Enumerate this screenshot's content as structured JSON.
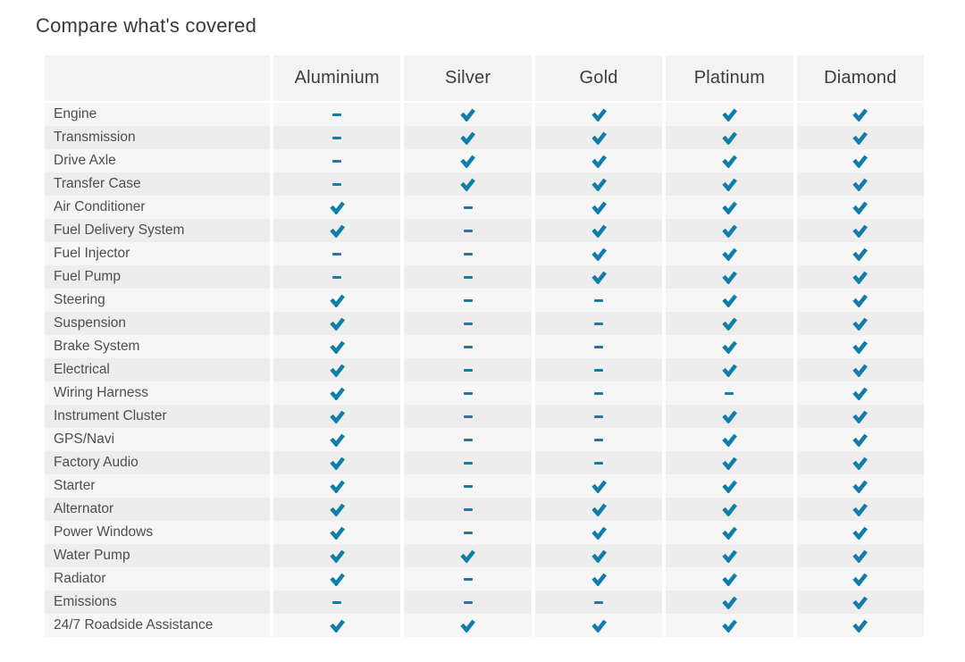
{
  "title": "Compare what's covered",
  "colors": {
    "accent": "#127ea7",
    "header_bg": "#f3f3f3",
    "row_odd_bg": "#f6f6f6",
    "row_even_bg": "#ededed"
  },
  "table": {
    "columns": [
      "Aluminium",
      "Silver",
      "Gold",
      "Platinum",
      "Diamond"
    ],
    "mark_names": {
      "check": "check-icon",
      "dash": "dash-icon"
    },
    "rows": [
      {
        "label": "Engine",
        "values": [
          "dash",
          "check",
          "check",
          "check",
          "check"
        ]
      },
      {
        "label": "Transmission",
        "values": [
          "dash",
          "check",
          "check",
          "check",
          "check"
        ]
      },
      {
        "label": "Drive Axle",
        "values": [
          "dash",
          "check",
          "check",
          "check",
          "check"
        ]
      },
      {
        "label": "Transfer Case",
        "values": [
          "dash",
          "check",
          "check",
          "check",
          "check"
        ]
      },
      {
        "label": "Air Conditioner",
        "values": [
          "check",
          "dash",
          "check",
          "check",
          "check"
        ]
      },
      {
        "label": "Fuel Delivery System",
        "values": [
          "check",
          "dash",
          "check",
          "check",
          "check"
        ]
      },
      {
        "label": "Fuel Injector",
        "values": [
          "dash",
          "dash",
          "check",
          "check",
          "check"
        ]
      },
      {
        "label": "Fuel Pump",
        "values": [
          "dash",
          "dash",
          "check",
          "check",
          "check"
        ]
      },
      {
        "label": "Steering",
        "values": [
          "check",
          "dash",
          "dash",
          "check",
          "check"
        ]
      },
      {
        "label": "Suspension",
        "values": [
          "check",
          "dash",
          "dash",
          "check",
          "check"
        ]
      },
      {
        "label": "Brake System",
        "values": [
          "check",
          "dash",
          "dash",
          "check",
          "check"
        ]
      },
      {
        "label": "Electrical",
        "values": [
          "check",
          "dash",
          "dash",
          "check",
          "check"
        ]
      },
      {
        "label": "Wiring Harness",
        "values": [
          "check",
          "dash",
          "dash",
          "dash",
          "check"
        ]
      },
      {
        "label": "Instrument Cluster",
        "values": [
          "check",
          "dash",
          "dash",
          "check",
          "check"
        ]
      },
      {
        "label": "GPS/Navi",
        "values": [
          "check",
          "dash",
          "dash",
          "check",
          "check"
        ]
      },
      {
        "label": "Factory Audio",
        "values": [
          "check",
          "dash",
          "dash",
          "check",
          "check"
        ]
      },
      {
        "label": "Starter",
        "values": [
          "check",
          "dash",
          "check",
          "check",
          "check"
        ]
      },
      {
        "label": "Alternator",
        "values": [
          "check",
          "dash",
          "check",
          "check",
          "check"
        ]
      },
      {
        "label": "Power Windows",
        "values": [
          "check",
          "dash",
          "check",
          "check",
          "check"
        ]
      },
      {
        "label": "Water Pump",
        "values": [
          "check",
          "check",
          "check",
          "check",
          "check"
        ]
      },
      {
        "label": "Radiator",
        "values": [
          "check",
          "dash",
          "check",
          "check",
          "check"
        ]
      },
      {
        "label": "Emissions",
        "values": [
          "dash",
          "dash",
          "dash",
          "check",
          "check"
        ]
      },
      {
        "label": "24/7 Roadside Assistance",
        "values": [
          "check",
          "check",
          "check",
          "check",
          "check"
        ]
      }
    ]
  }
}
